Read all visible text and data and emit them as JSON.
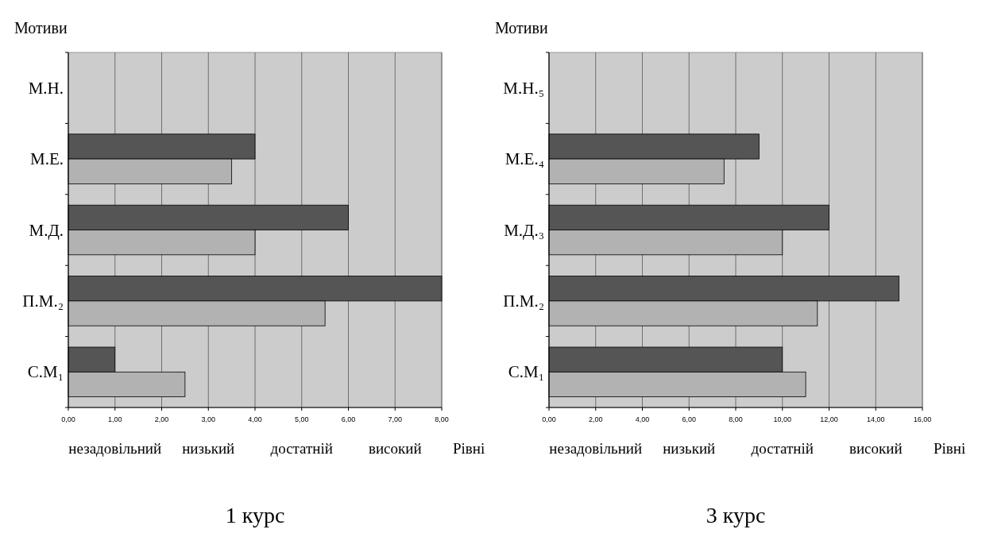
{
  "chart_data": [
    {
      "type": "bar",
      "orientation": "horizontal",
      "title": "1 курс",
      "xlabel": "Рівні",
      "ylabel": "Мотиви",
      "categories": [
        "М.Н.",
        "М.Е.",
        "М.Д.",
        "П.М.₂",
        "С.М₁"
      ],
      "series": [
        {
          "color": "#555555",
          "values": [
            0,
            4.0,
            6.0,
            8.0,
            1.0
          ]
        },
        {
          "color": "#b2b2b2",
          "values": [
            0,
            3.5,
            4.0,
            5.5,
            2.5
          ]
        }
      ],
      "xlim": [
        0,
        8
      ],
      "xticks": [
        {
          "value": 0,
          "label": "0,00"
        },
        {
          "value": 1,
          "label": "1,00"
        },
        {
          "value": 2,
          "label": "2,00"
        },
        {
          "value": 3,
          "label": "3,00"
        },
        {
          "value": 4,
          "label": "4,00"
        },
        {
          "value": 5,
          "label": "5,00"
        },
        {
          "value": 6,
          "label": "6,00"
        },
        {
          "value": 7,
          "label": "7,00"
        },
        {
          "value": 8,
          "label": "8,00"
        }
      ],
      "grid": "x",
      "annotations": [
        "незадовільний",
        "низький",
        "достатній",
        "високий"
      ]
    },
    {
      "type": "bar",
      "orientation": "horizontal",
      "title": "3 курс",
      "xlabel": "Рівні",
      "ylabel": "Мотиви",
      "categories": [
        "М.Н.₅",
        "М.Е.₄",
        "М.Д.₃",
        "П.М.₂",
        "С.М₁"
      ],
      "series": [
        {
          "color": "#555555",
          "values": [
            0,
            9.0,
            12.0,
            15.0,
            10.0
          ]
        },
        {
          "color": "#b2b2b2",
          "values": [
            0,
            7.5,
            10.0,
            11.5,
            11.0
          ]
        }
      ],
      "xlim": [
        0,
        16
      ],
      "xticks": [
        {
          "value": 0,
          "label": "0,00"
        },
        {
          "value": 2,
          "label": "2,00"
        },
        {
          "value": 4,
          "label": "4,00"
        },
        {
          "value": 6,
          "label": "6,00"
        },
        {
          "value": 8,
          "label": "8,00"
        },
        {
          "value": 10,
          "label": "10,00"
        },
        {
          "value": 12,
          "label": "12,00"
        },
        {
          "value": 14,
          "label": "14,00"
        },
        {
          "value": 16,
          "label": "16,00"
        }
      ],
      "grid": "x",
      "annotations": [
        "незадовільний",
        "низький",
        "достатній",
        "високий"
      ]
    }
  ]
}
